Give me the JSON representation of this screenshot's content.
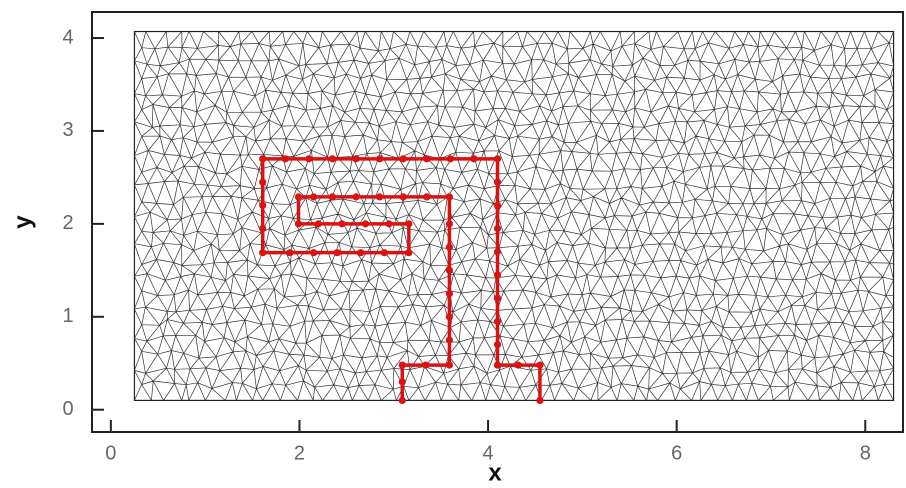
{
  "chart_data": {
    "type": "mesh",
    "x_label": "x",
    "y_label": "y",
    "xlim": [
      -0.2,
      8.4
    ],
    "ylim": [
      -0.24,
      4.28
    ],
    "xticks": [
      0,
      2,
      4,
      6,
      8
    ],
    "yticks": [
      0,
      1,
      2,
      3,
      4
    ],
    "mesh_xlim": [
      0.25,
      8.3
    ],
    "mesh_ylim": [
      0.1,
      4.07
    ],
    "series": [
      {
        "color": "#dd1111",
        "x": [
          3.09,
          3.09,
          3.09,
          3.34,
          3.59,
          3.59,
          3.59,
          3.59,
          3.59,
          3.59,
          3.59,
          3.59,
          3.35,
          3.1,
          2.85,
          2.6,
          2.35,
          2.15,
          1.99,
          1.99,
          2.2,
          2.45,
          2.7,
          2.95,
          3.16,
          3.16,
          2.9,
          2.65,
          2.4,
          2.15,
          1.9,
          1.61,
          1.61,
          1.61,
          1.61,
          1.61,
          1.85,
          2.1,
          2.35,
          2.6,
          2.85,
          3.1,
          3.35,
          3.6,
          3.85,
          4.1,
          4.1,
          4.1,
          4.1,
          4.1,
          4.1,
          4.1,
          4.1,
          4.1,
          4.1,
          4.32,
          4.55,
          4.55
        ],
        "y": [
          0.1,
          0.3,
          0.48,
          0.48,
          0.48,
          0.75,
          1.0,
          1.25,
          1.5,
          1.75,
          2.0,
          2.29,
          2.29,
          2.29,
          2.29,
          2.29,
          2.29,
          2.29,
          2.29,
          2.0,
          2.0,
          2.0,
          2.0,
          2.0,
          2.0,
          1.69,
          1.69,
          1.69,
          1.69,
          1.69,
          1.69,
          1.69,
          1.95,
          2.2,
          2.45,
          2.7,
          2.7,
          2.7,
          2.7,
          2.7,
          2.7,
          2.7,
          2.7,
          2.7,
          2.7,
          2.7,
          2.45,
          2.2,
          1.95,
          1.7,
          1.45,
          1.2,
          0.95,
          0.7,
          0.48,
          0.48,
          0.48,
          0.1
        ]
      }
    ]
  }
}
